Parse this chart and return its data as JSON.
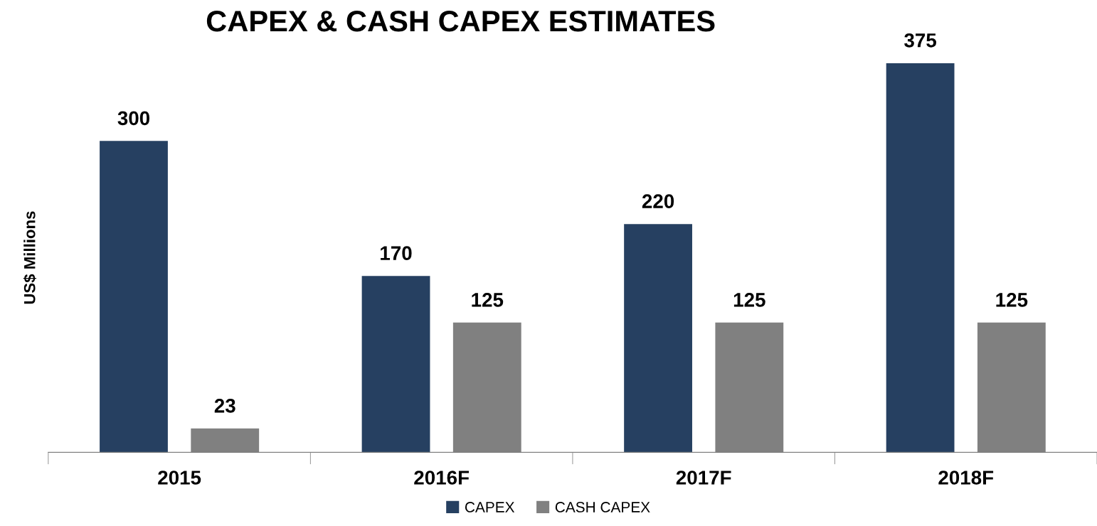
{
  "chart_data": {
    "type": "bar",
    "title": "CAPEX & CASH CAPEX ESTIMATES",
    "ylabel": "US$ Millions",
    "categories": [
      "2015",
      "2016F",
      "2017F",
      "2018F"
    ],
    "series": [
      {
        "name": "CAPEX",
        "color": "#264061",
        "values": [
          300,
          170,
          220,
          375
        ]
      },
      {
        "name": "CASH CAPEX",
        "color": "#808080",
        "values": [
          23,
          125,
          125,
          125
        ]
      }
    ],
    "data_labels": true,
    "legend": "bottom",
    "grid": false,
    "tick_labels": "x"
  }
}
